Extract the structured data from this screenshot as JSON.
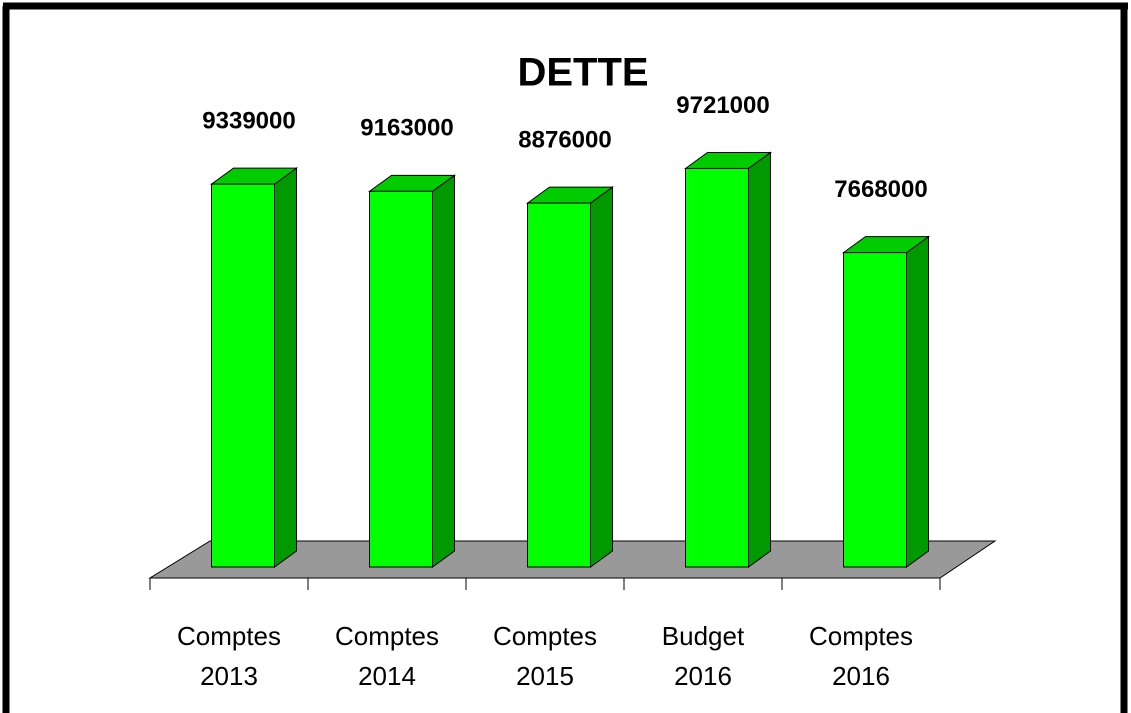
{
  "chart_data": {
    "type": "bar3d",
    "title": "DETTE",
    "categories": [
      "Comptes 2013",
      "Comptes 2014",
      "Comptes 2015",
      "Budget 2016",
      "Comptes 2016"
    ],
    "values": [
      9339000,
      9163000,
      8876000,
      9721000,
      7668000
    ],
    "color": "#00ff00",
    "ylim": [
      0,
      12000000
    ]
  }
}
